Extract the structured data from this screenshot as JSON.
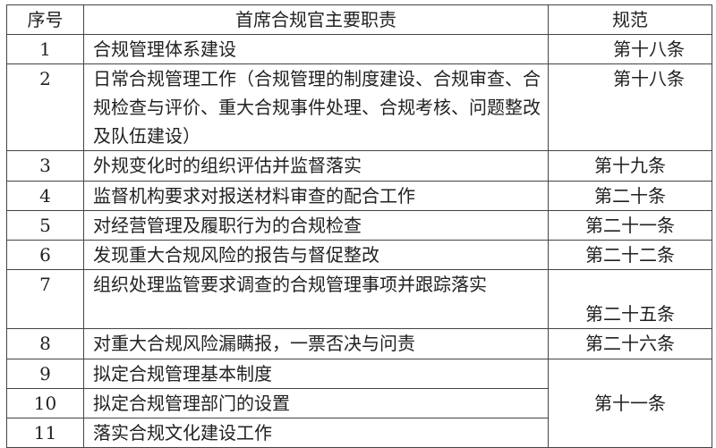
{
  "table": {
    "headers": [
      "序号",
      "首席合规官主要职责",
      "规范"
    ],
    "rows": [
      {
        "no": "1",
        "duty": "合规管理体系建设",
        "reg": "第十八条"
      },
      {
        "no": "2",
        "duty": "日常合规管理工作（合规管理的制度建设、合规审查、合规检查与评价、重大合规事件处理、合规考核、问题整改及队伍建设）",
        "reg": "第十八条"
      },
      {
        "no": "3",
        "duty": "外规变化时的组织评估并监督落实",
        "reg": "第十九条"
      },
      {
        "no": "4",
        "duty": "监督机构要求对报送材料审查的配合工作",
        "reg": "第二十条"
      },
      {
        "no": "5",
        "duty": "对经营管理及履职行为的合规检查",
        "reg": "第二十一条"
      },
      {
        "no": "6",
        "duty": "发现重大合规风险的报告与督促整改",
        "reg": "第二十二条"
      },
      {
        "no": "7",
        "duty": "组织处理监管要求调查的合规管理事项并跟踪落实",
        "reg": "第二十五条"
      },
      {
        "no": "8",
        "duty": "对重大合规风险漏瞒报，一票否决与问责",
        "reg": "第二十六条"
      },
      {
        "no": "9",
        "duty": "拟定合规管理基本制度",
        "reg": "第十一条"
      },
      {
        "no": "10",
        "duty": "拟定合规管理部门的设置",
        "reg": ""
      },
      {
        "no": "11",
        "duty": "落实合规文化建设工作",
        "reg": ""
      }
    ]
  }
}
